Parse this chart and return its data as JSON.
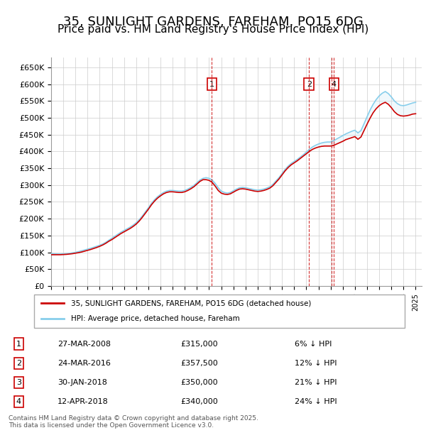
{
  "title": "35, SUNLIGHT GARDENS, FAREHAM, PO15 6DG",
  "subtitle": "Price paid vs. HM Land Registry's House Price Index (HPI)",
  "title_fontsize": 13,
  "subtitle_fontsize": 11,
  "ylabel": "",
  "xlabel": "",
  "ylim": [
    0,
    680000
  ],
  "yticks": [
    0,
    50000,
    100000,
    150000,
    200000,
    250000,
    300000,
    350000,
    400000,
    450000,
    500000,
    550000,
    600000,
    650000
  ],
  "ytick_labels": [
    "£0",
    "£50K",
    "£100K",
    "£150K",
    "£200K",
    "£250K",
    "£300K",
    "£350K",
    "£400K",
    "£450K",
    "£500K",
    "£550K",
    "£600K",
    "£650K"
  ],
  "xlim_start": 1995.0,
  "xlim_end": 2025.5,
  "hpi_color": "#87CEEB",
  "price_color": "#CC0000",
  "background_color": "#ffffff",
  "plot_bg_color": "#ffffff",
  "grid_color": "#cccccc",
  "transaction_line_color": "#CC0000",
  "shade_color": "#d0e8f8",
  "transactions": [
    {
      "id": 1,
      "date": "27-MAR-2008",
      "year": 2008.23,
      "price": 315000,
      "pct": "6% ↓ HPI"
    },
    {
      "id": 2,
      "date": "24-MAR-2016",
      "year": 2016.23,
      "price": 357500,
      "pct": "12% ↓ HPI"
    },
    {
      "id": 3,
      "date": "30-JAN-2018",
      "year": 2018.08,
      "price": 350000,
      "pct": "21% ↓ HPI"
    },
    {
      "id": 4,
      "date": "12-APR-2018",
      "year": 2018.28,
      "price": 340000,
      "pct": "24% ↓ HPI"
    }
  ],
  "legend_line1": "35, SUNLIGHT GARDENS, FAREHAM, PO15 6DG (detached house)",
  "legend_line2": "HPI: Average price, detached house, Fareham",
  "footer": "Contains HM Land Registry data © Crown copyright and database right 2025.\nThis data is licensed under the Open Government Licence v3.0.",
  "hpi_data_x": [
    1995.0,
    1995.25,
    1995.5,
    1995.75,
    1996.0,
    1996.25,
    1996.5,
    1996.75,
    1997.0,
    1997.25,
    1997.5,
    1997.75,
    1998.0,
    1998.25,
    1998.5,
    1998.75,
    1999.0,
    1999.25,
    1999.5,
    1999.75,
    2000.0,
    2000.25,
    2000.5,
    2000.75,
    2001.0,
    2001.25,
    2001.5,
    2001.75,
    2002.0,
    2002.25,
    2002.5,
    2002.75,
    2003.0,
    2003.25,
    2003.5,
    2003.75,
    2004.0,
    2004.25,
    2004.5,
    2004.75,
    2005.0,
    2005.25,
    2005.5,
    2005.75,
    2006.0,
    2006.25,
    2006.5,
    2006.75,
    2007.0,
    2007.25,
    2007.5,
    2007.75,
    2008.0,
    2008.25,
    2008.5,
    2008.75,
    2009.0,
    2009.25,
    2009.5,
    2009.75,
    2010.0,
    2010.25,
    2010.5,
    2010.75,
    2011.0,
    2011.25,
    2011.5,
    2011.75,
    2012.0,
    2012.25,
    2012.5,
    2012.75,
    2013.0,
    2013.25,
    2013.5,
    2013.75,
    2014.0,
    2014.25,
    2014.5,
    2014.75,
    2015.0,
    2015.25,
    2015.5,
    2015.75,
    2016.0,
    2016.25,
    2016.5,
    2016.75,
    2017.0,
    2017.25,
    2017.5,
    2017.75,
    2018.0,
    2018.25,
    2018.5,
    2018.75,
    2019.0,
    2019.25,
    2019.5,
    2019.75,
    2020.0,
    2020.25,
    2020.5,
    2020.75,
    2021.0,
    2021.25,
    2021.5,
    2021.75,
    2022.0,
    2022.25,
    2022.5,
    2022.75,
    2023.0,
    2023.25,
    2023.5,
    2023.75,
    2024.0,
    2024.25,
    2024.5,
    2024.75,
    2025.0
  ],
  "hpi_data_y": [
    96000,
    95500,
    95200,
    95000,
    95500,
    96000,
    97000,
    98500,
    100000,
    102000,
    104500,
    107000,
    109500,
    112000,
    115000,
    118000,
    121000,
    125000,
    130000,
    136000,
    142000,
    148000,
    154000,
    160000,
    165000,
    170000,
    175000,
    181000,
    188000,
    197000,
    208000,
    220000,
    232000,
    245000,
    256000,
    265000,
    272000,
    278000,
    282000,
    284000,
    284000,
    283000,
    282000,
    282000,
    284000,
    288000,
    293000,
    299000,
    307000,
    315000,
    320000,
    322000,
    320000,
    315000,
    305000,
    292000,
    282000,
    278000,
    276000,
    278000,
    283000,
    288000,
    292000,
    293000,
    292000,
    290000,
    288000,
    286000,
    285000,
    286000,
    288000,
    291000,
    295000,
    302000,
    312000,
    322000,
    334000,
    346000,
    356000,
    364000,
    370000,
    376000,
    383000,
    390000,
    398000,
    406000,
    413000,
    418000,
    422000,
    425000,
    427000,
    428000,
    428000,
    432000,
    437000,
    442000,
    447000,
    452000,
    456000,
    460000,
    463000,
    455000,
    462000,
    482000,
    503000,
    523000,
    540000,
    554000,
    565000,
    573000,
    578000,
    572000,
    562000,
    550000,
    542000,
    537000,
    536000,
    538000,
    541000,
    544000,
    546000
  ],
  "price_data_x": [
    1995.0,
    1995.25,
    1995.5,
    1995.75,
    1996.0,
    1996.25,
    1996.5,
    1996.75,
    1997.0,
    1997.25,
    1997.5,
    1997.75,
    1998.0,
    1998.25,
    1998.5,
    1998.75,
    1999.0,
    1999.25,
    1999.5,
    1999.75,
    2000.0,
    2000.25,
    2000.5,
    2000.75,
    2001.0,
    2001.25,
    2001.5,
    2001.75,
    2002.0,
    2002.25,
    2002.5,
    2002.75,
    2003.0,
    2003.25,
    2003.5,
    2003.75,
    2004.0,
    2004.25,
    2004.5,
    2004.75,
    2005.0,
    2005.25,
    2005.5,
    2005.75,
    2006.0,
    2006.25,
    2006.5,
    2006.75,
    2007.0,
    2007.25,
    2007.5,
    2007.75,
    2008.0,
    2008.25,
    2008.5,
    2008.75,
    2009.0,
    2009.25,
    2009.5,
    2009.75,
    2010.0,
    2010.25,
    2010.5,
    2010.75,
    2011.0,
    2011.25,
    2011.5,
    2011.75,
    2012.0,
    2012.25,
    2012.5,
    2012.75,
    2013.0,
    2013.25,
    2013.5,
    2013.75,
    2014.0,
    2014.25,
    2014.5,
    2014.75,
    2015.0,
    2015.25,
    2015.5,
    2015.75,
    2016.0,
    2016.25,
    2016.5,
    2016.75,
    2017.0,
    2017.25,
    2017.5,
    2017.75,
    2018.0,
    2018.25,
    2018.5,
    2018.75,
    2019.0,
    2019.25,
    2019.5,
    2019.75,
    2020.0,
    2020.25,
    2020.5,
    2020.75,
    2021.0,
    2021.25,
    2021.5,
    2021.75,
    2022.0,
    2022.25,
    2022.5,
    2022.75,
    2023.0,
    2023.25,
    2023.5,
    2023.75,
    2024.0,
    2024.25,
    2024.5,
    2024.75,
    2025.0
  ],
  "price_data_y": [
    93000,
    93000,
    93000,
    93000,
    93500,
    94000,
    95000,
    96000,
    97500,
    99000,
    101000,
    103500,
    106000,
    108500,
    111500,
    114500,
    118000,
    122000,
    127000,
    133000,
    138000,
    144000,
    150000,
    156000,
    161000,
    166000,
    171000,
    177000,
    184000,
    193000,
    204000,
    216000,
    228000,
    241000,
    252000,
    261000,
    268000,
    274000,
    278000,
    280000,
    280000,
    279000,
    278000,
    278000,
    280000,
    284000,
    289000,
    295000,
    303000,
    311000,
    316000,
    316000,
    314000,
    308000,
    297000,
    284000,
    276000,
    273000,
    272000,
    274000,
    279000,
    284000,
    288000,
    289000,
    288000,
    286000,
    284000,
    282000,
    281000,
    282000,
    284000,
    287000,
    291000,
    298000,
    308000,
    318000,
    330000,
    342000,
    352000,
    360000,
    366000,
    372000,
    379000,
    386000,
    393000,
    400000,
    406000,
    410000,
    413000,
    415000,
    416000,
    416000,
    416000,
    418000,
    422000,
    426000,
    430000,
    435000,
    438000,
    441000,
    444000,
    436000,
    443000,
    462000,
    481000,
    499000,
    515000,
    527000,
    536000,
    542000,
    546000,
    540000,
    530000,
    518000,
    510000,
    506000,
    505000,
    506000,
    508000,
    511000,
    512000
  ]
}
